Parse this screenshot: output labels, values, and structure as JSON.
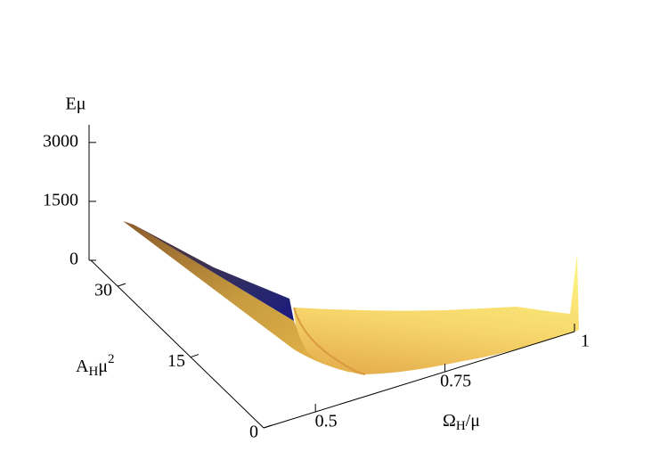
{
  "chart_data": {
    "type": "surface3d",
    "z_label": "Eμ",
    "y_label": [
      "A",
      "H",
      "μ",
      "2"
    ],
    "x_label": [
      "Ω",
      "H",
      "/μ"
    ],
    "zlim": [
      0,
      3450
    ],
    "zticks": [
      0,
      1500,
      3000
    ],
    "ylim": [
      0,
      35.5
    ],
    "yticks": [
      0,
      15,
      30
    ],
    "xlim": [
      0.4,
      1
    ],
    "xticks": [
      0.5,
      0.75,
      1
    ]
  }
}
